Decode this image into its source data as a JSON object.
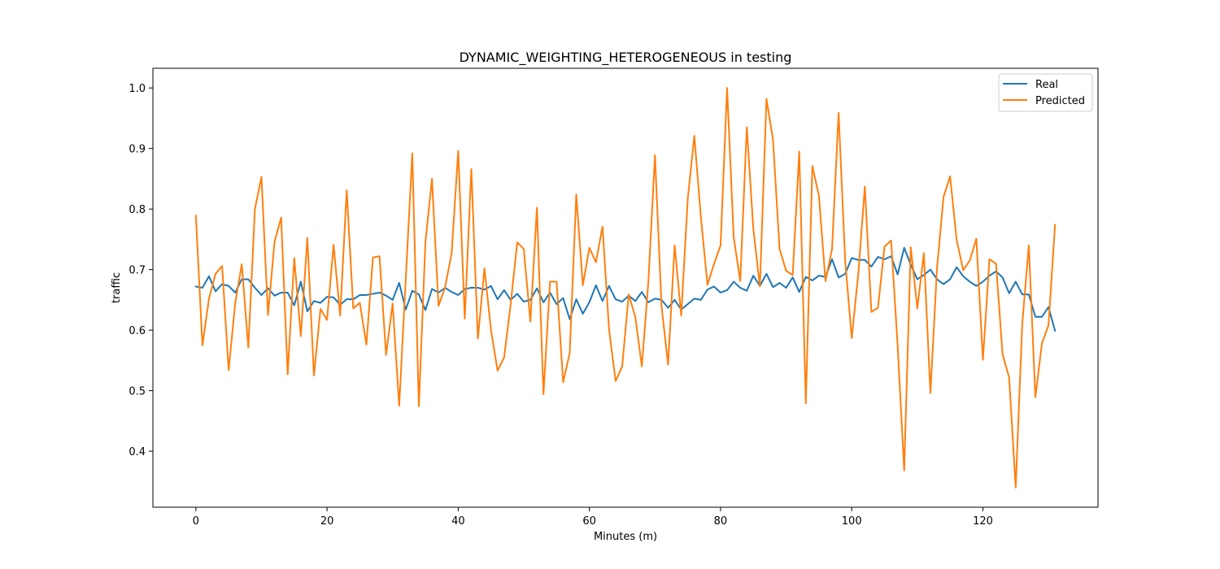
{
  "chart_data": {
    "type": "line",
    "title": "DYNAMIC_WEIGHTING_HETEROGENEOUS in testing",
    "xlabel": "Minutes (m)",
    "ylabel": "traffic",
    "xlim": [
      -6.55,
      137.55
    ],
    "ylim": [
      0.3075,
      1.0325
    ],
    "xticks": [
      0,
      20,
      40,
      60,
      80,
      100,
      120
    ],
    "yticks": [
      0.4,
      0.5,
      0.6,
      0.7,
      0.8,
      0.9,
      1.0
    ],
    "ytick_labels": [
      "0.4",
      "0.5",
      "0.6",
      "0.7",
      "0.8",
      "0.9",
      "1.0"
    ],
    "legend_position": "upper right",
    "grid": false,
    "series": [
      {
        "name": "Real",
        "color": "#1f77b4",
        "values": [
          0.672,
          0.67,
          0.689,
          0.664,
          0.676,
          0.673,
          0.662,
          0.684,
          0.684,
          0.67,
          0.658,
          0.669,
          0.657,
          0.662,
          0.662,
          0.641,
          0.68,
          0.631,
          0.648,
          0.645,
          0.655,
          0.654,
          0.642,
          0.651,
          0.651,
          0.658,
          0.658,
          0.66,
          0.662,
          0.657,
          0.65,
          0.678,
          0.634,
          0.665,
          0.659,
          0.633,
          0.668,
          0.662,
          0.67,
          0.663,
          0.658,
          0.668,
          0.67,
          0.67,
          0.667,
          0.673,
          0.651,
          0.666,
          0.65,
          0.66,
          0.647,
          0.65,
          0.669,
          0.646,
          0.662,
          0.643,
          0.653,
          0.618,
          0.651,
          0.627,
          0.646,
          0.674,
          0.648,
          0.673,
          0.651,
          0.647,
          0.657,
          0.648,
          0.663,
          0.646,
          0.652,
          0.65,
          0.637,
          0.65,
          0.634,
          0.643,
          0.652,
          0.65,
          0.667,
          0.672,
          0.662,
          0.666,
          0.68,
          0.67,
          0.665,
          0.69,
          0.673,
          0.693,
          0.671,
          0.678,
          0.67,
          0.687,
          0.663,
          0.688,
          0.682,
          0.69,
          0.688,
          0.717,
          0.687,
          0.693,
          0.719,
          0.716,
          0.716,
          0.705,
          0.721,
          0.717,
          0.722,
          0.692,
          0.736,
          0.708,
          0.684,
          0.691,
          0.7,
          0.684,
          0.676,
          0.684,
          0.704,
          0.689,
          0.68,
          0.673,
          0.68,
          0.69,
          0.697,
          0.687,
          0.661,
          0.68,
          0.659,
          0.659,
          0.622,
          0.622,
          0.638,
          0.599
        ]
      },
      {
        "name": "Predicted",
        "color": "#ff7f0e",
        "values": [
          0.789,
          0.575,
          0.652,
          0.693,
          0.706,
          0.534,
          0.645,
          0.709,
          0.571,
          0.8,
          0.853,
          0.625,
          0.746,
          0.786,
          0.527,
          0.719,
          0.59,
          0.752,
          0.525,
          0.635,
          0.617,
          0.741,
          0.624,
          0.831,
          0.636,
          0.645,
          0.576,
          0.72,
          0.722,
          0.559,
          0.644,
          0.475,
          0.684,
          0.892,
          0.474,
          0.745,
          0.85,
          0.64,
          0.671,
          0.727,
          0.896,
          0.619,
          0.866,
          0.586,
          0.702,
          0.6,
          0.533,
          0.555,
          0.643,
          0.745,
          0.734,
          0.614,
          0.802,
          0.494,
          0.68,
          0.68,
          0.514,
          0.562,
          0.824,
          0.674,
          0.736,
          0.712,
          0.771,
          0.601,
          0.516,
          0.54,
          0.659,
          0.622,
          0.54,
          0.681,
          0.889,
          0.64,
          0.543,
          0.74,
          0.624,
          0.817,
          0.921,
          0.787,
          0.675,
          0.709,
          0.74,
          1.0,
          0.754,
          0.681,
          0.935,
          0.767,
          0.672,
          0.982,
          0.914,
          0.734,
          0.698,
          0.691,
          0.895,
          0.479,
          0.871,
          0.822,
          0.681,
          0.734,
          0.959,
          0.715,
          0.587,
          0.693,
          0.837,
          0.63,
          0.637,
          0.738,
          0.748,
          0.575,
          0.368,
          0.737,
          0.636,
          0.727,
          0.496,
          0.702,
          0.82,
          0.854,
          0.749,
          0.699,
          0.715,
          0.751,
          0.551,
          0.717,
          0.71,
          0.56,
          0.522,
          0.34,
          0.61,
          0.74,
          0.489,
          0.578,
          0.608,
          0.774
        ]
      }
    ]
  }
}
